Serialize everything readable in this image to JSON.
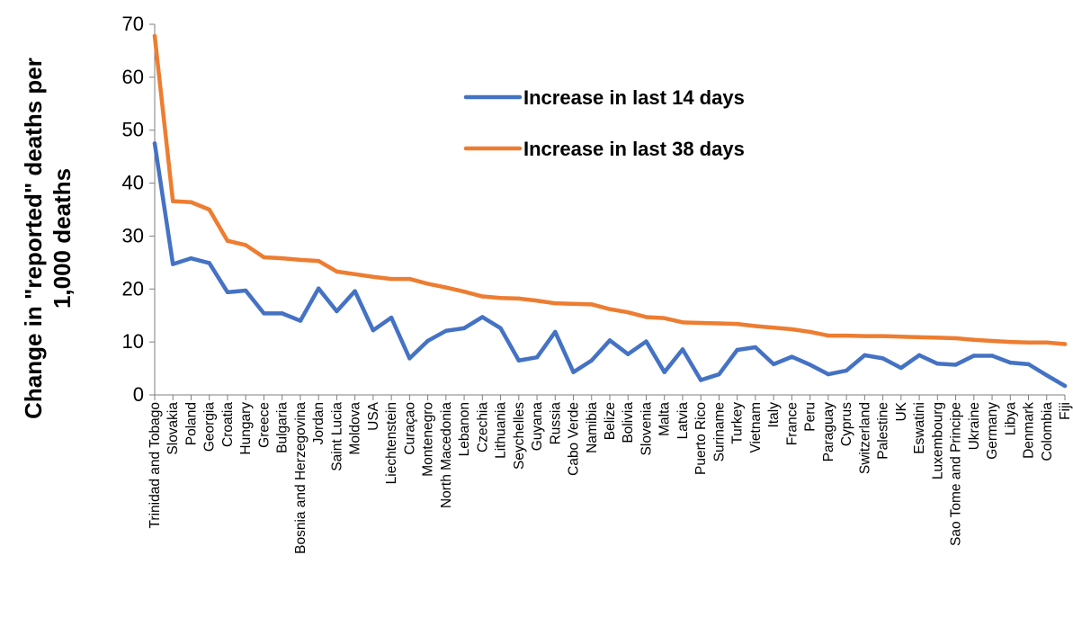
{
  "chart_data": {
    "type": "line",
    "title": "",
    "xlabel": "",
    "ylabel_lines": [
      "Change in \"reported\" deaths per",
      "1,000 deaths"
    ],
    "ylim": [
      0,
      70
    ],
    "yticks": [
      0,
      10,
      20,
      30,
      40,
      50,
      60,
      70
    ],
    "grid": false,
    "legend_position": "top-center",
    "categories": [
      "Trinidad and Tobago",
      "Slovakia",
      "Poland",
      "Georgia",
      "Croatia",
      "Hungary",
      "Greece",
      "Bulgaria",
      "Bosnia and Herzegovina",
      "Jordan",
      "Saint Lucia",
      "Moldova",
      "USA",
      "Liechtenstein",
      "Curaçao",
      "Montenegro",
      "North Macedonia",
      "Lebanon",
      "Czechia",
      "Lithuania",
      "Seychelles",
      "Guyana",
      "Russia",
      "Cabo Verde",
      "Namibia",
      "Belize",
      "Bolivia",
      "Slovenia",
      "Malta",
      "Latvia",
      "Puerto Rico",
      "Suriname",
      "Turkey",
      "Vietnam",
      "Italy",
      "France",
      "Peru",
      "Paraguay",
      "Cyprus",
      "Switzerland",
      "Palestine",
      "UK",
      "Eswatini",
      "Luxembourg",
      "Sao Tome and Principe",
      "Ukraine",
      "Germany",
      "Libya",
      "Denmark",
      "Colombia",
      "Fiji"
    ],
    "series": [
      {
        "name": "Increase in last 14 days",
        "color": "#4472C4",
        "values": [
          47.5,
          24.7,
          25.8,
          24.9,
          19.4,
          19.7,
          15.4,
          15.4,
          14.0,
          20.1,
          15.8,
          19.6,
          12.2,
          14.6,
          6.9,
          10.2,
          12.1,
          12.6,
          14.7,
          12.6,
          6.5,
          7.1,
          11.9,
          4.3,
          6.5,
          10.3,
          7.7,
          10.1,
          4.3,
          8.6,
          2.8,
          3.9,
          8.5,
          9.0,
          5.8,
          7.2,
          5.7,
          3.9,
          4.6,
          7.5,
          6.9,
          5.1,
          7.5,
          5.9,
          5.7,
          7.4,
          7.4,
          6.1,
          5.8,
          3.7,
          1.7
        ]
      },
      {
        "name": "Increase in last 38 days",
        "color": "#ED7D31",
        "values": [
          67.8,
          36.6,
          36.4,
          35.0,
          29.1,
          28.3,
          26.0,
          25.8,
          25.5,
          25.3,
          23.3,
          22.8,
          22.3,
          21.9,
          21.9,
          21.0,
          20.3,
          19.5,
          18.6,
          18.3,
          18.2,
          17.8,
          17.3,
          17.2,
          17.1,
          16.2,
          15.6,
          14.7,
          14.5,
          13.7,
          13.6,
          13.5,
          13.4,
          13.0,
          12.7,
          12.4,
          11.9,
          11.2,
          11.2,
          11.1,
          11.1,
          11.0,
          10.9,
          10.8,
          10.7,
          10.4,
          10.2,
          10.0,
          9.9,
          9.9,
          9.6
        ]
      }
    ]
  }
}
